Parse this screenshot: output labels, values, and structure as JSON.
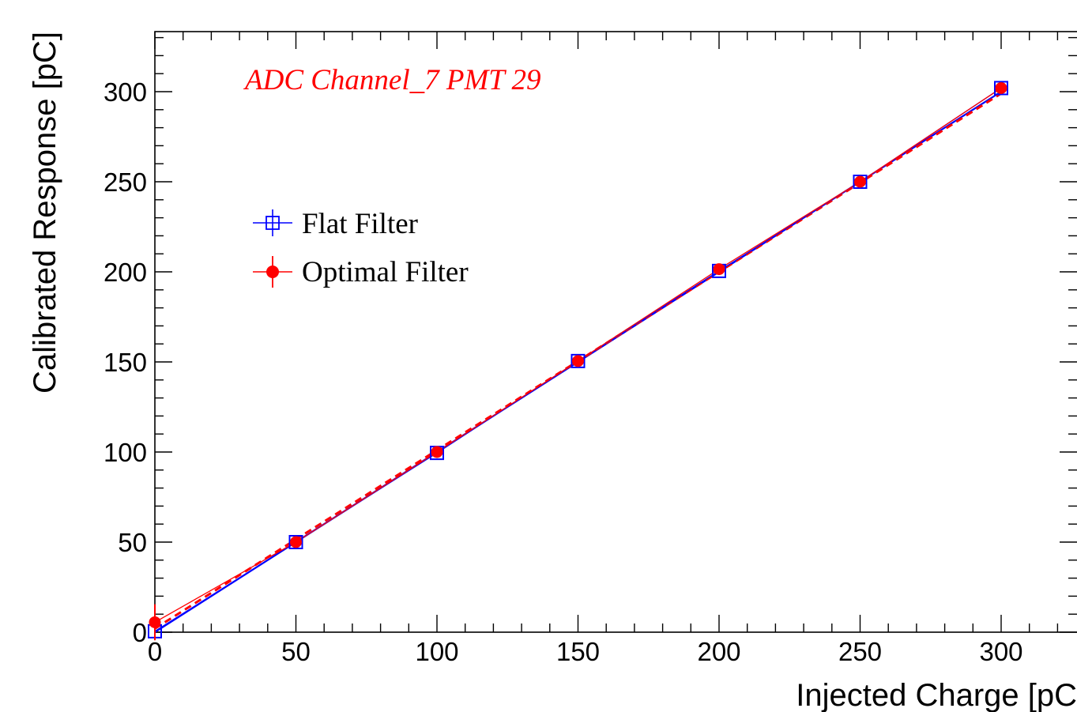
{
  "chart_data": {
    "type": "scatter",
    "xlabel": "Injected Charge [pC",
    "ylabel": "Calibrated Response [pC]",
    "annotation": "ADC Channel_7 PMT 29",
    "xlim": [
      0,
      330
    ],
    "ylim": [
      0,
      330
    ],
    "x_ticks": [
      0,
      50,
      100,
      150,
      200,
      250,
      300
    ],
    "y_ticks": [
      0,
      50,
      100,
      150,
      200,
      250,
      300
    ],
    "grid": false,
    "legend_position": "upper-left",
    "series": [
      {
        "name": "Flat Filter",
        "color": "#0000ff",
        "marker": "open-square",
        "x": [
          0,
          50,
          100,
          150,
          200,
          250,
          300
        ],
        "y": [
          0.5,
          50,
          99.5,
          150.5,
          200.5,
          250,
          302
        ],
        "fit": [
          0,
          1.0
        ]
      },
      {
        "name": "Optimal Filter",
        "color": "#ff0000",
        "marker": "filled-circle",
        "x": [
          0,
          50,
          100,
          150,
          200,
          250,
          300
        ],
        "y": [
          5.5,
          50,
          100,
          150.5,
          201.5,
          250,
          302
        ],
        "yerr": [
          10,
          0.5,
          0.5,
          0.5,
          0.5,
          0.5,
          0.5
        ],
        "fit": [
          2,
          0.99
        ]
      }
    ]
  }
}
